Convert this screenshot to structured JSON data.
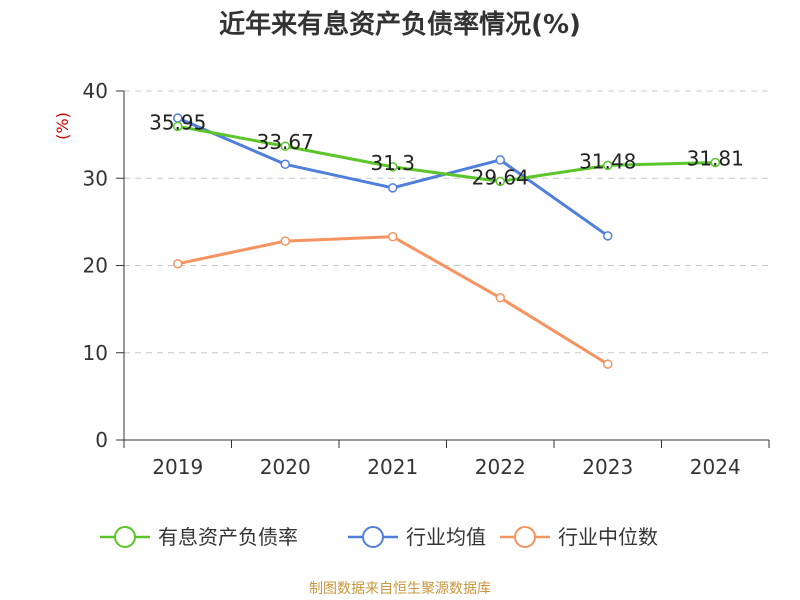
{
  "chart_data": {
    "type": "line",
    "title": "近年来有息资产负债率情况(%)",
    "ylabel": "(%)",
    "xlabel": "",
    "categories": [
      "2019",
      "2020",
      "2021",
      "2022",
      "2023",
      "2024"
    ],
    "ylim": [
      0,
      40
    ],
    "yticks": [
      0,
      10,
      20,
      30,
      40
    ],
    "grid": true,
    "legend_position": "bottom",
    "series": [
      {
        "name": "有息资产负债率",
        "color": "#5cc52a",
        "values": [
          35.95,
          33.67,
          31.3,
          29.64,
          31.48,
          31.81
        ],
        "labels": [
          "35.95",
          "33.67",
          "31.3",
          "29.64",
          "31.48",
          "31.81"
        ]
      },
      {
        "name": "行业均值",
        "color": "#4f7fdb",
        "values": [
          36.9,
          31.6,
          28.9,
          32.1,
          23.4,
          null
        ]
      },
      {
        "name": "行业中位数",
        "color": "#f59461",
        "values": [
          20.2,
          22.8,
          23.3,
          16.3,
          8.7,
          null
        ]
      }
    ]
  },
  "colors": {
    "ylabel": "#cc0000",
    "source": "#c8963c"
  },
  "source_text": "制图数据来自恒生聚源数据库"
}
